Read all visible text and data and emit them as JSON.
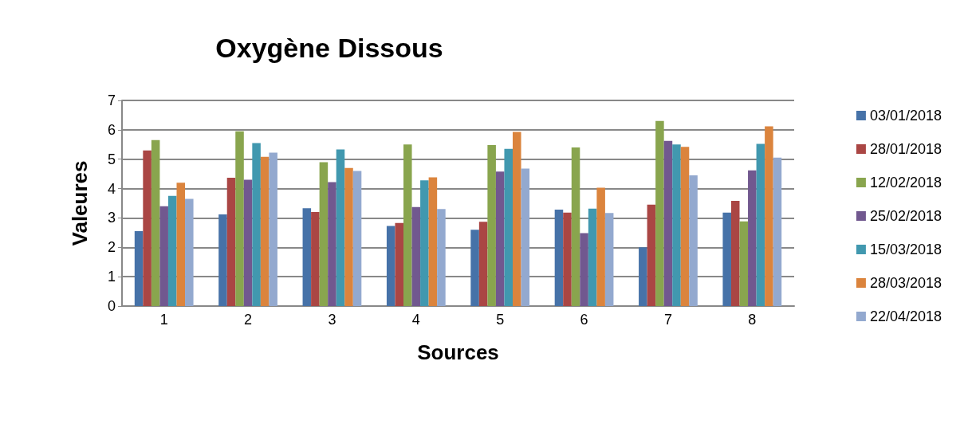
{
  "chart_data": {
    "type": "bar",
    "title": "Oxygène Dissous",
    "xlabel": "Sources",
    "ylabel": "Valeures",
    "categories": [
      "1",
      "2",
      "3",
      "4",
      "5",
      "6",
      "7",
      "8"
    ],
    "series": [
      {
        "name": "03/01/2018",
        "color": "#4672a8",
        "values": [
          2.55,
          3.12,
          3.33,
          2.73,
          2.6,
          3.28,
          2.0,
          3.18
        ]
      },
      {
        "name": "28/01/2018",
        "color": "#aa4644",
        "values": [
          5.3,
          4.37,
          3.2,
          2.83,
          2.87,
          3.18,
          3.45,
          3.58
        ]
      },
      {
        "name": "12/02/2018",
        "color": "#89a54e",
        "values": [
          5.65,
          5.95,
          4.9,
          5.5,
          5.48,
          5.4,
          6.3,
          2.88
        ]
      },
      {
        "name": "25/02/2018",
        "color": "#71588f",
        "values": [
          3.4,
          4.3,
          4.22,
          3.37,
          4.58,
          2.48,
          5.62,
          4.62
        ]
      },
      {
        "name": "15/03/2018",
        "color": "#4198af",
        "values": [
          3.75,
          5.55,
          5.33,
          4.28,
          5.35,
          3.32,
          5.5,
          5.52
        ]
      },
      {
        "name": "28/03/2018",
        "color": "#db843d",
        "values": [
          4.2,
          5.08,
          4.7,
          4.38,
          5.93,
          4.03,
          5.42,
          6.12
        ]
      },
      {
        "name": "22/04/2018",
        "color": "#93a9cf",
        "values": [
          3.65,
          5.22,
          4.6,
          3.3,
          4.68,
          3.17,
          4.45,
          5.05
        ]
      }
    ],
    "ylim": [
      0,
      7
    ],
    "yticks": [
      0,
      1,
      2,
      3,
      4,
      5,
      6,
      7
    ],
    "grid": "y",
    "legend": "right"
  }
}
